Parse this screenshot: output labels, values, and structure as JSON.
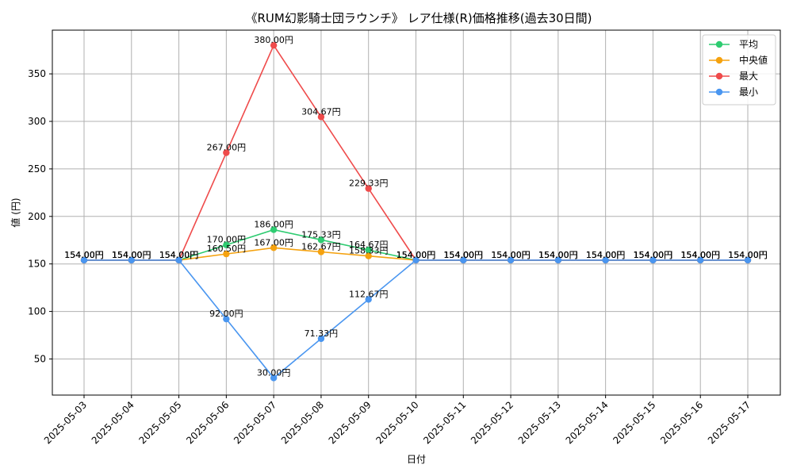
{
  "chart_data": {
    "type": "line",
    "title": "《RUM幻影騎士団ラウンチ》 レア仕様(R)価格推移(過去30日間)",
    "xlabel": "日付",
    "ylabel": "値 (円)",
    "ylim": [
      12,
      396
    ],
    "yticks": [
      50,
      100,
      150,
      200,
      250,
      300,
      350
    ],
    "grid": true,
    "legend_position": "top-right",
    "label_suffix": "円",
    "categories": [
      "2025-05-03",
      "2025-05-04",
      "2025-05-05",
      "2025-05-06",
      "2025-05-07",
      "2025-05-08",
      "2025-05-09",
      "2025-05-10",
      "2025-05-11",
      "2025-05-12",
      "2025-05-13",
      "2025-05-14",
      "2025-05-15",
      "2025-05-16",
      "2025-05-17"
    ],
    "series": [
      {
        "name": "平均",
        "color": "#2ecc71",
        "values": [
          154.0,
          154.0,
          154.0,
          170.0,
          186.0,
          175.33,
          164.67,
          154.0,
          154.0,
          154.0,
          154.0,
          154.0,
          154.0,
          154.0,
          154.0
        ]
      },
      {
        "name": "中央値",
        "color": "#f5a20f",
        "values": [
          154.0,
          154.0,
          154.0,
          160.5,
          167.0,
          162.67,
          158.33,
          154.0,
          154.0,
          154.0,
          154.0,
          154.0,
          154.0,
          154.0,
          154.0
        ]
      },
      {
        "name": "最大",
        "color": "#ef4b4b",
        "values": [
          154.0,
          154.0,
          154.0,
          267.0,
          380.0,
          304.67,
          229.33,
          154.0,
          154.0,
          154.0,
          154.0,
          154.0,
          154.0,
          154.0,
          154.0
        ]
      },
      {
        "name": "最小",
        "color": "#4a96f0",
        "values": [
          154.0,
          154.0,
          154.0,
          92.0,
          30.0,
          71.33,
          112.67,
          154.0,
          154.0,
          154.0,
          154.0,
          154.0,
          154.0,
          154.0,
          154.0
        ]
      }
    ]
  }
}
